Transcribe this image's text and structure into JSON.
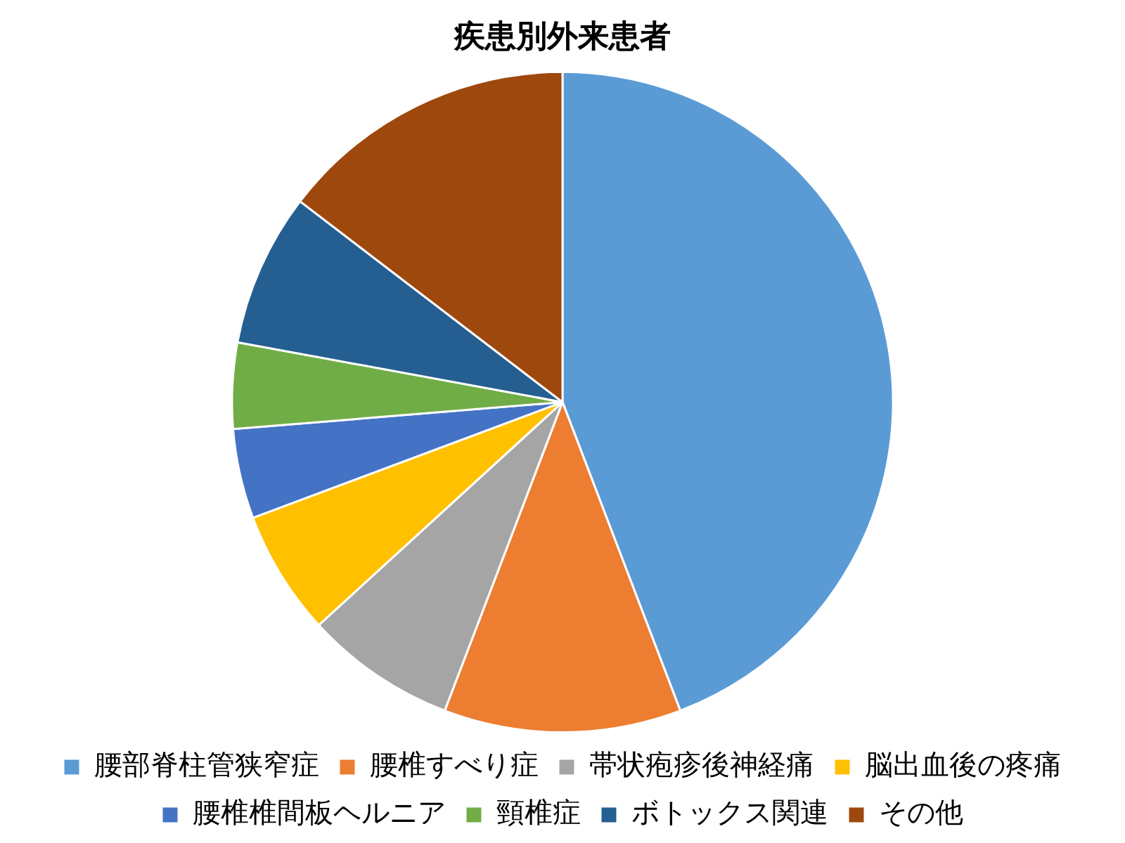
{
  "chart_data": {
    "type": "pie",
    "title": "疾患別外来患者",
    "categories": [
      "腰部脊柱管狭窄症",
      "腰椎すべり症",
      "帯状疱疹後神経痛",
      "脳出血後の疼痛",
      "腰椎椎間板ヘルニア",
      "頸椎症",
      "ボトックス関連",
      "その他"
    ],
    "values": [
      44.2,
      11.6,
      7.4,
      6.1,
      4.4,
      4.2,
      7.5,
      14.6
    ],
    "colors": [
      "#5b9bd5",
      "#ed7d31",
      "#a5a5a5",
      "#ffc000",
      "#4472c4",
      "#70ad47",
      "#255e91",
      "#9e480e"
    ],
    "legend": "bottom"
  }
}
